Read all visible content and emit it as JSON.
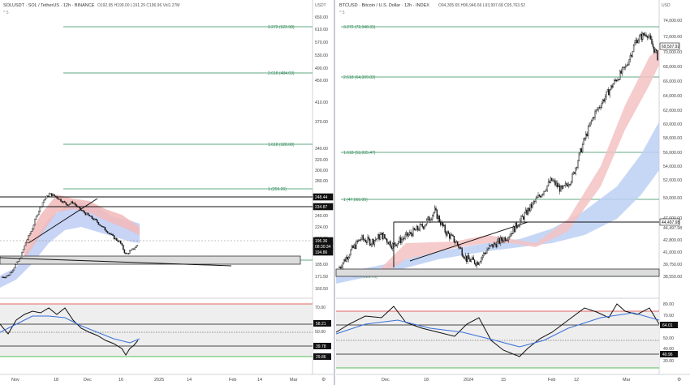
{
  "left": {
    "header": {
      "symbol": "SOLUSDT · SOL / TetherUS · 12h · BINANCE",
      "ohlc": "O192.95 H199.00 L191.29 C196.96 Vol1.27M",
      "sub": "^ 5"
    },
    "axis_unit": "USDT",
    "price_ticks": [
      "650.00",
      "610.00",
      "570.00",
      "530.00",
      "490.00",
      "450.00",
      "410.00",
      "370.00",
      "340.00",
      "320.00",
      "300.00",
      "280.00",
      "260.00",
      "240.00",
      "224.00",
      "208.00",
      "196.36",
      "185.00",
      "171.50",
      "160.50",
      "150.50"
    ],
    "price_badges": [
      {
        "label": "248.44",
        "style": "dark"
      },
      {
        "label": "234.87",
        "style": "dark"
      },
      {
        "label": "196.36",
        "style": "dark"
      },
      {
        "label": "08:30:34",
        "style": "dark"
      },
      {
        "label": "194.86",
        "style": "dark"
      }
    ],
    "fib_levels": [
      {
        "label": "3.272 (622.98)",
        "color": "#2e8b57"
      },
      {
        "label": "2.618 (484.03)",
        "color": "#2e8b57"
      },
      {
        "label": "1.618 (328.08)",
        "color": "#2e8b57"
      },
      {
        "label": "1 (259.26)",
        "color": "#2e8b57"
      },
      {
        "label": "0 (176.26)",
        "color": "#2e8b57"
      }
    ],
    "rsi_ticks": [
      "70.00",
      "50.00",
      "30.00"
    ],
    "rsi_badges": [
      {
        "label": "58.21"
      },
      {
        "label": "39.78"
      },
      {
        "label": "29.86"
      }
    ],
    "time_labels": [
      "Nov",
      "18",
      "Dec",
      "16",
      "2025",
      "14",
      "Feb",
      "14",
      "Mar"
    ]
  },
  "right": {
    "header": {
      "symbol": "BTCUSD · Bitcoin / U.S. Dollar · 12h · INDEX",
      "ohlc": "O94,305.65 H96,946.66 L93,997.68 C95,763.52",
      "sub": "^ 5"
    },
    "axis_unit": "USD",
    "price_ticks": [
      "74,000.00",
      "72,000.00",
      "70,000.00",
      "68,000.00",
      "66,000.00",
      "64,000.00",
      "62,000.00",
      "60,000.00",
      "58,000.00",
      "56,000.00",
      "54,000.00",
      "52,000.00",
      "50,000.00",
      "47,000.00",
      "44,497.98",
      "42,800.00",
      "41,000.00",
      "39,750.00",
      "38,550.00",
      "37,450.00"
    ],
    "price_badges": [
      {
        "label": "69,507.92",
        "style": "light"
      },
      {
        "label": "44,497.98",
        "style": "light"
      }
    ],
    "fib_levels": [
      {
        "label": "3.272 (72,948.31)",
        "color": "#2e8b57"
      },
      {
        "label": "2.618 (64,309.02)",
        "color": "#2e8b57"
      },
      {
        "label": "1.618 (53,035.47)",
        "color": "#2e8b57"
      },
      {
        "label": "1 (47,060.00)",
        "color": "#2e8b57"
      },
      {
        "label": "0 (38,626.75)",
        "color": "#2e8b57"
      }
    ],
    "rsi_ticks": [
      "80.00",
      "70.00",
      "60.00",
      "50.00",
      "40.00",
      "30.00",
      "20.00"
    ],
    "rsi_badges": [
      {
        "label": "64.01"
      },
      {
        "label": "40.96"
      }
    ],
    "time_labels": [
      "Dec",
      "18",
      "2024",
      "15",
      "Feb",
      "12",
      "Mar"
    ]
  },
  "chart_data": [
    {
      "type": "candlestick",
      "title": "SOLUSDT · SOL / TetherUS · 12h · BINANCE",
      "ylabel": "USDT",
      "approx_close_path": [
        158,
        160,
        170,
        180,
        200,
        215,
        235,
        250,
        258,
        255,
        250,
        245,
        248,
        240,
        235,
        230,
        225,
        218,
        212,
        205,
        200,
        185,
        190,
        196.36
      ],
      "fib_levels": [
        {
          "ratio": 3.272,
          "price": 622.98
        },
        {
          "ratio": 2.618,
          "price": 484.03
        },
        {
          "ratio": 1.618,
          "price": 328.08
        },
        {
          "ratio": 1,
          "price": 259.26
        },
        {
          "ratio": 0,
          "price": 176.26
        }
      ],
      "marked_prices": [
        248.44,
        234.87,
        196.36,
        194.86
      ],
      "rsi_marked": [
        58.21,
        39.78,
        29.86
      ]
    },
    {
      "type": "candlestick",
      "title": "BTCUSD · Bitcoin / U.S. Dollar · 12h · INDEX",
      "ylabel": "USD",
      "approx_close_path": [
        38800,
        41000,
        43000,
        42500,
        43500,
        42000,
        43000,
        44000,
        45000,
        47000,
        44000,
        42500,
        40000,
        39500,
        41500,
        42500,
        43500,
        45500,
        47500,
        49500,
        51500,
        50000,
        52000,
        57000,
        61000,
        63500,
        66000,
        68000,
        72000,
        73000,
        69507.92
      ],
      "fib_levels": [
        {
          "ratio": 3.272,
          "price": 72948.31
        },
        {
          "ratio": 2.618,
          "price": 64309.02
        },
        {
          "ratio": 1.618,
          "price": 53035.47
        },
        {
          "ratio": 1,
          "price": 47060.0
        },
        {
          "ratio": 0,
          "price": 38626.75
        }
      ],
      "marked_prices": [
        69507.92,
        44497.98
      ],
      "rsi_marked": [
        64.01,
        40.96
      ]
    }
  ]
}
